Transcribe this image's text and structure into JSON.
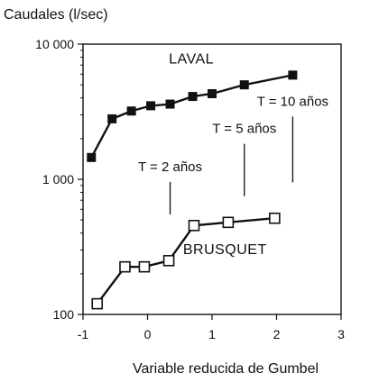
{
  "chart_data": {
    "type": "line",
    "xlabel": "Variable reducida de Gumbel",
    "ylabel": "Caudales (l/sec)",
    "xlim": [
      -1,
      3
    ],
    "ylim": [
      100,
      10000
    ],
    "yscale": "log",
    "grid": false,
    "xticks": [
      -1,
      0,
      1,
      2,
      3
    ],
    "xtick_labels": [
      "-1",
      "0",
      "1",
      "2",
      "3"
    ],
    "yticks": [
      100,
      1000,
      10000
    ],
    "ytick_labels": [
      "100",
      "1 000",
      "10 000"
    ],
    "series": [
      {
        "name": "LAVAL",
        "marker": "filled-square",
        "x": [
          -0.87,
          -0.55,
          -0.25,
          0.05,
          0.35,
          0.7,
          1.0,
          1.5,
          2.25
        ],
        "y": [
          1450,
          2800,
          3200,
          3500,
          3600,
          4100,
          4300,
          5000,
          5900
        ]
      },
      {
        "name": "BRUSQUET",
        "marker": "open-square",
        "x": [
          -0.78,
          -0.35,
          -0.05,
          0.33,
          0.72,
          1.25,
          1.97
        ],
        "y": [
          120,
          225,
          225,
          250,
          455,
          480,
          515
        ]
      }
    ],
    "annotations": [
      {
        "text": "T = 2 años",
        "x": 0.35,
        "y": 1150,
        "arrow_x": 0.35,
        "arrow_y": 550
      },
      {
        "text": "T = 5 años",
        "x": 1.5,
        "y": 2200,
        "arrow_x": 1.5,
        "arrow_y": 750
      },
      {
        "text": "T = 10 años",
        "x": 2.25,
        "y": 3500,
        "arrow_x": 2.25,
        "arrow_y": 950
      }
    ]
  }
}
